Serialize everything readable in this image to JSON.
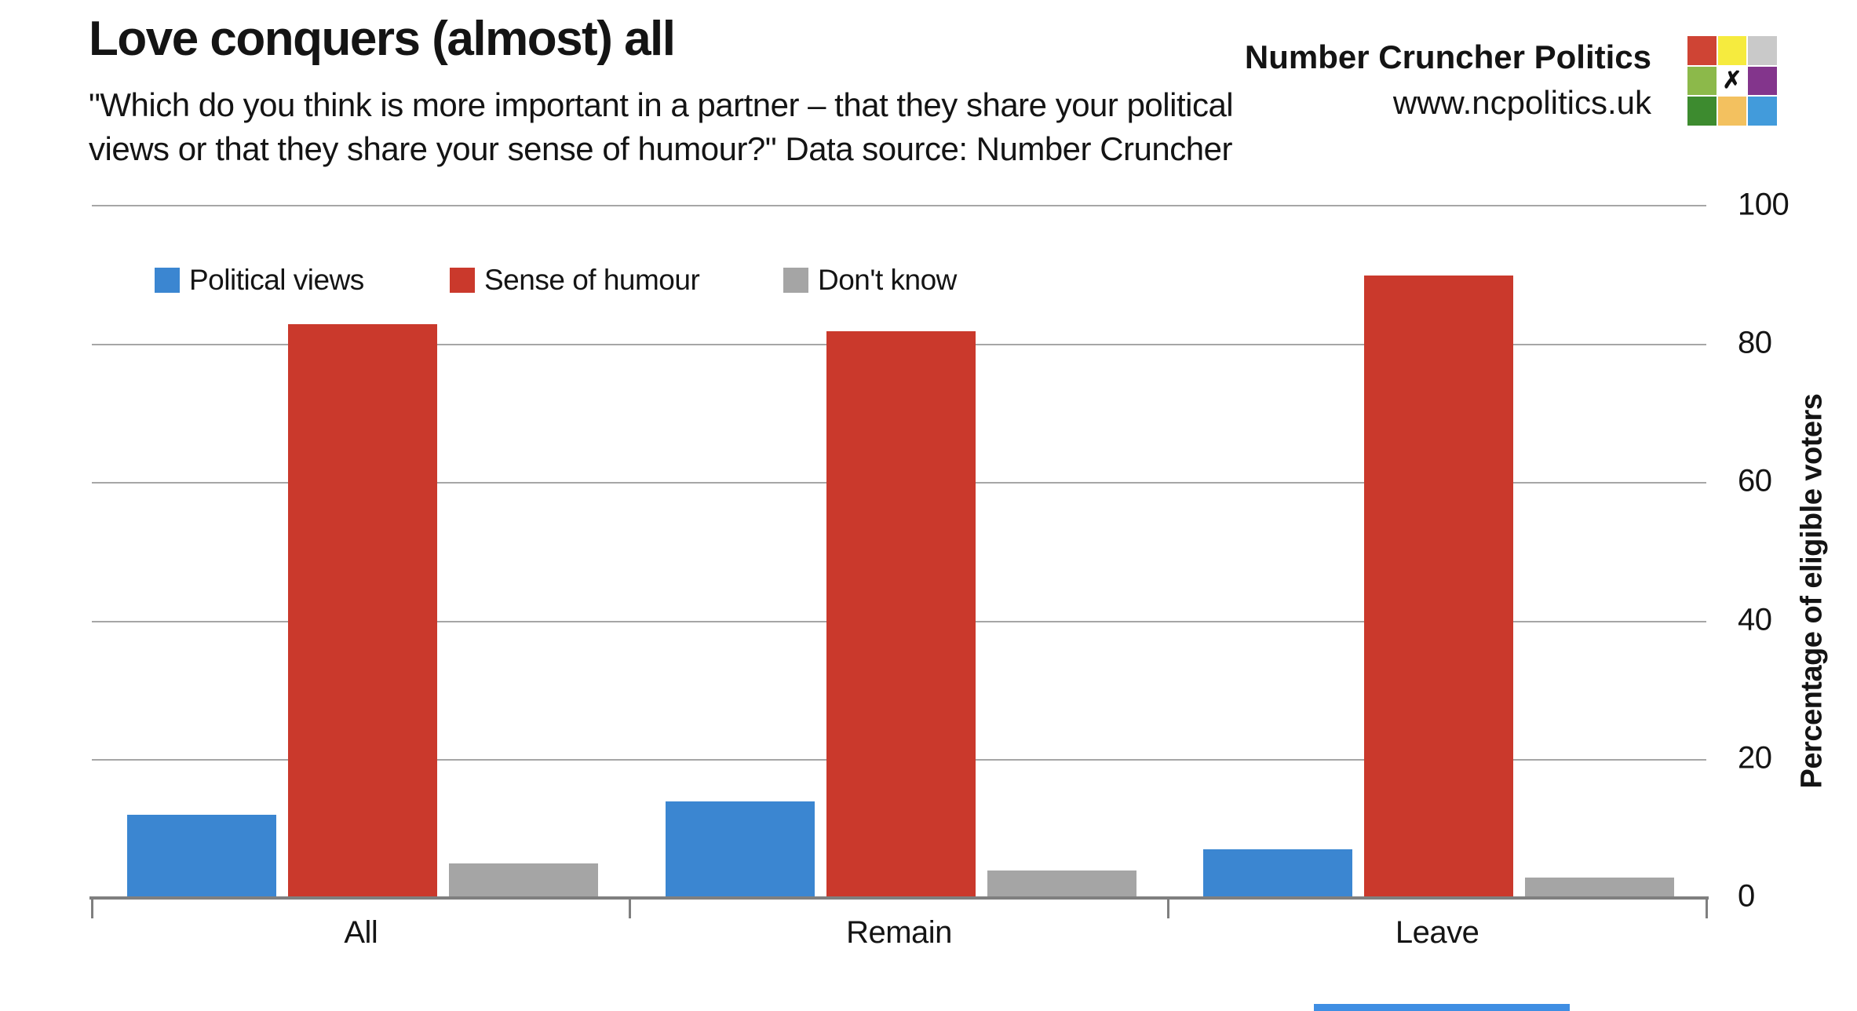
{
  "header": {
    "title": "Love conquers (almost) all",
    "subtitle_line1": "\"Which do you think is more important in a partner – that they share your political",
    "subtitle_line2": "views or that they share your sense of humour?\" Data source: Number Cruncher",
    "brand_name": "Number Cruncher Politics",
    "brand_url": "www.ncpolitics.uk"
  },
  "logo": {
    "cells": [
      "#cf4434",
      "#f6eb3e",
      "#c9c9c9",
      "#8cb94a",
      "X",
      "#83358c",
      "#3d8b2f",
      "#f3c15f",
      "#429bdb"
    ],
    "x_glyph": "✗"
  },
  "chart_data": {
    "type": "bar",
    "title": "Love conquers (almost) all",
    "categories": [
      "All",
      "Remain",
      "Leave"
    ],
    "series": [
      {
        "name": "Political views",
        "color": "#3b86d1",
        "values": [
          12,
          14,
          7
        ]
      },
      {
        "name": "Sense of humour",
        "color": "#ca392c",
        "values": [
          83,
          82,
          90
        ]
      },
      {
        "name": "Don't know",
        "color": "#a5a5a5",
        "values": [
          5,
          4,
          3
        ]
      }
    ],
    "xlabel": "",
    "ylabel": "Percentage of eligible voters",
    "ylim": [
      0,
      100
    ],
    "yticks": [
      0,
      20,
      40,
      60,
      80,
      100
    ],
    "grid": true,
    "legend_position": "top-inside",
    "gridline_color": "#a6a6a6",
    "axis_color": "#7f7f7f"
  },
  "scrollbar": {
    "color": "#3f8ee3"
  }
}
